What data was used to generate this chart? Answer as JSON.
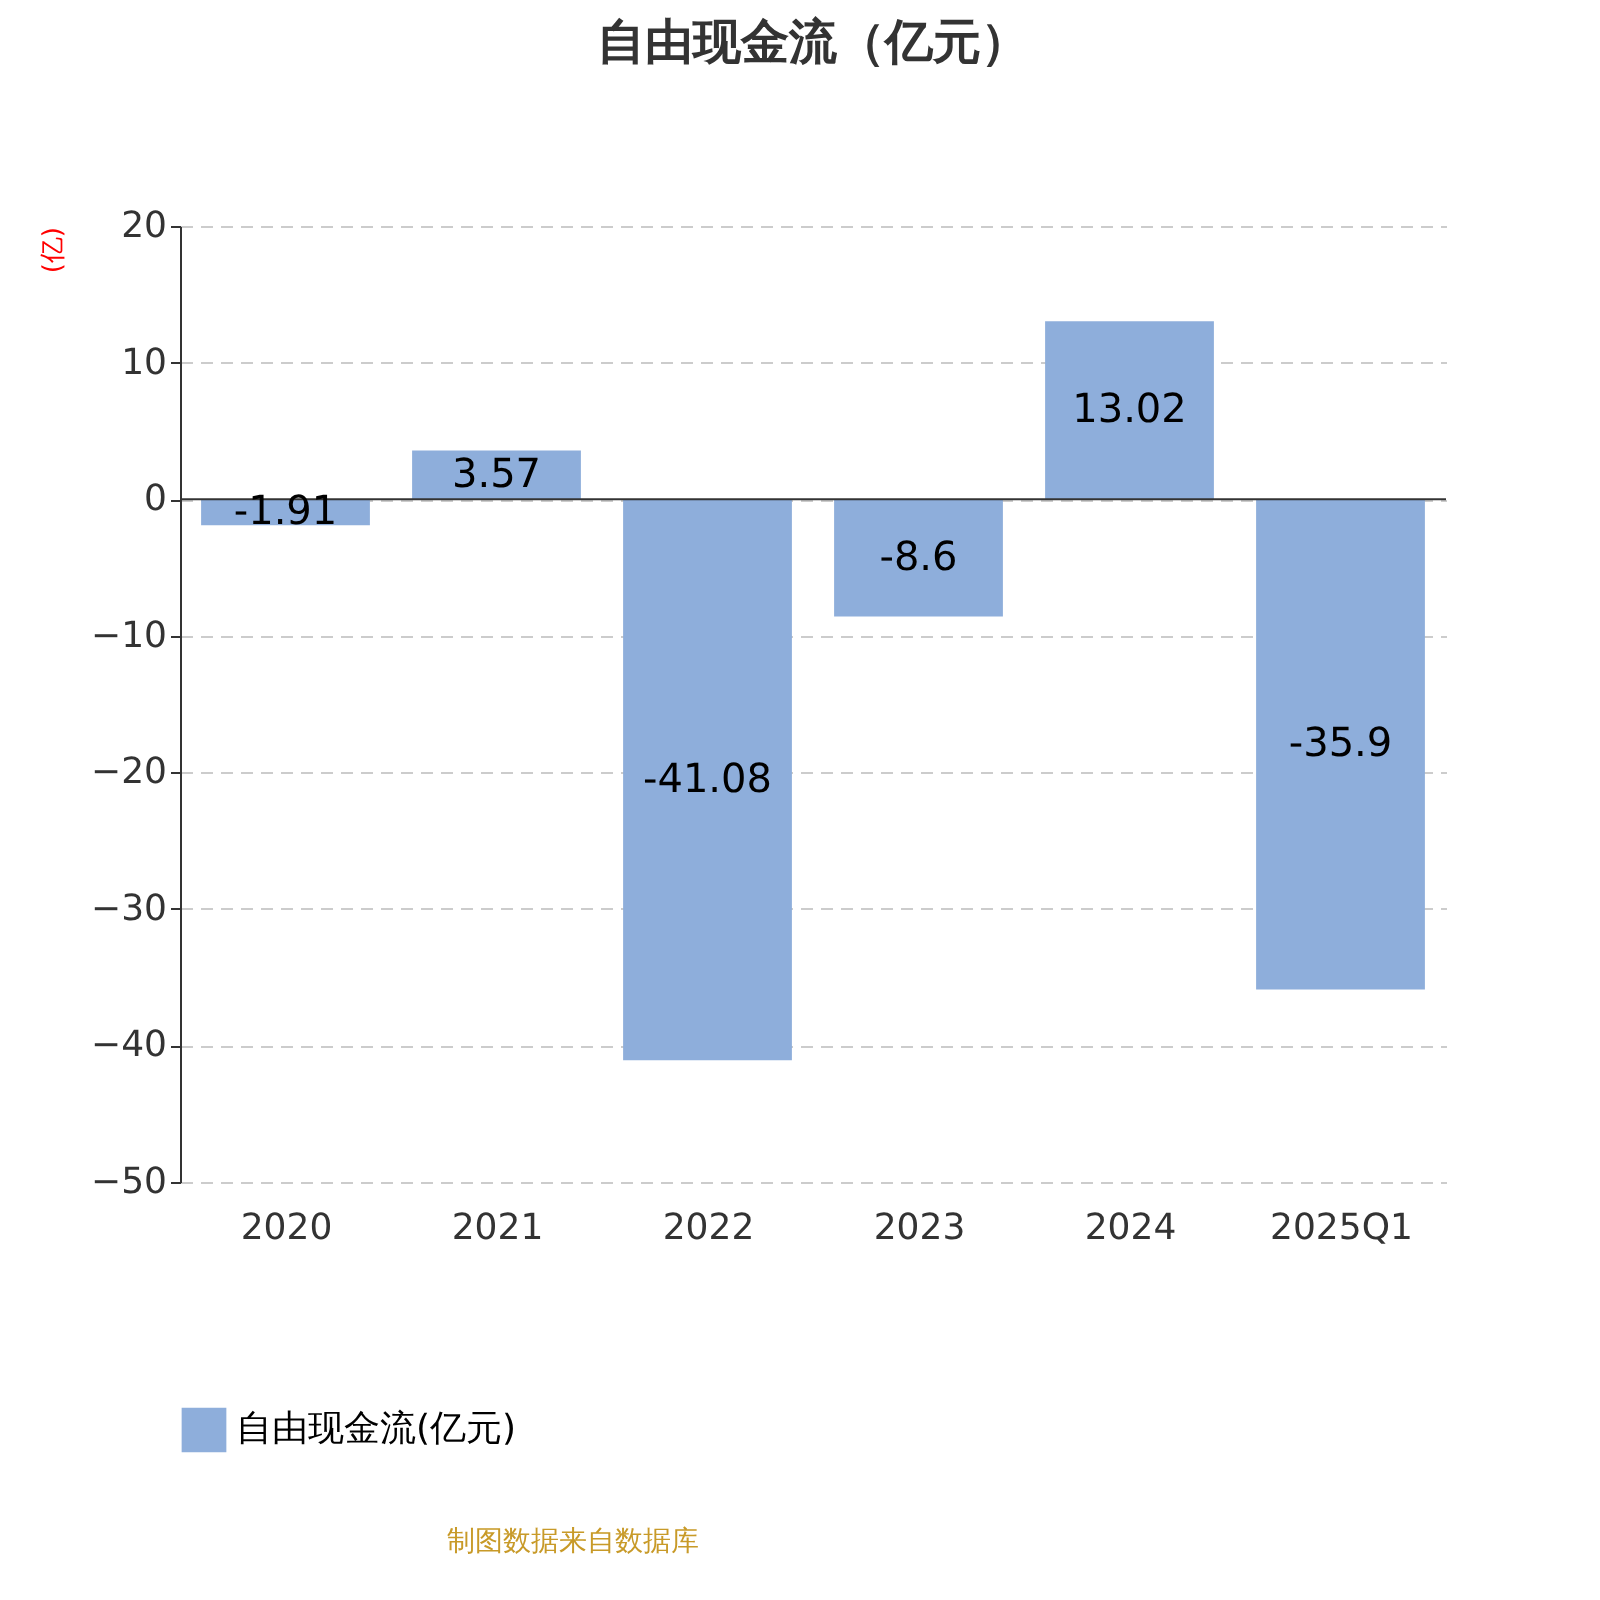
{
  "chart_data": {
    "type": "bar",
    "title": "自由现金流（亿元）",
    "ylabel": "(亿)",
    "categories": [
      "2020",
      "2021",
      "2022",
      "2023",
      "2024",
      "2025Q1"
    ],
    "series": [
      {
        "name": "自由现金流(亿元)",
        "color": "#8eaedb",
        "values": [
          -1.91,
          3.57,
          -41.08,
          -8.6,
          13.02,
          -35.9
        ]
      }
    ],
    "ylim": [
      -50,
      20
    ],
    "yticks": [
      -50,
      -40,
      -30,
      -20,
      -10,
      0,
      10,
      20
    ],
    "grid": "y",
    "legend": "bottom",
    "data_labels": true,
    "annotations": [
      "制图数据来自数据库"
    ]
  }
}
